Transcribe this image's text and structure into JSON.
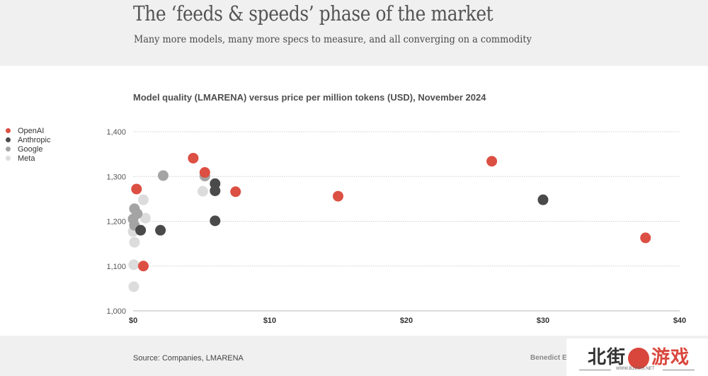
{
  "header": {
    "title": "The ‘feeds & speeds’ phase of the market",
    "subtitle": "Many more models, many more specs to measure, and all converging on a commodity"
  },
  "footer": {
    "source": "Source: Companies, LMARENA",
    "credit": "Benedict E"
  },
  "watermark": {
    "left_text": "北街",
    "right_text": "游戏",
    "url": "WWW.BJJHXS.NET"
  },
  "colors": {
    "OpenAI": "#dc4f43",
    "Anthropic": "#4a4a4a",
    "Google": "#a4a4a4",
    "Meta": "#dcdcdc",
    "grid": "#cfcfcf",
    "axis": "#c8c8c8"
  },
  "chart_data": {
    "type": "scatter",
    "title": "Model quality (LMARENA) versus price per million tokens (USD), November 2024",
    "xlabel": "",
    "ylabel": "",
    "xlim": [
      0,
      40
    ],
    "ylim": [
      1000,
      1400
    ],
    "x_ticks": [
      0,
      10,
      20,
      30,
      40
    ],
    "x_tick_labels": [
      "$0",
      "$10",
      "$20",
      "$30",
      "$40"
    ],
    "y_ticks": [
      1000,
      1100,
      1200,
      1300,
      1400
    ],
    "y_tick_labels": [
      "1,000",
      "1,100",
      "1,200",
      "1,300",
      "1,400"
    ],
    "grid": "horizontal dotted",
    "legend": {
      "placement": "left",
      "entries": [
        "OpenAI",
        "Anthropic",
        "Google",
        "Meta"
      ]
    },
    "series": [
      {
        "name": "Meta",
        "points": [
          [
            0.75,
            1248
          ],
          [
            0.9,
            1207
          ],
          [
            0.0,
            1177
          ],
          [
            0.1,
            1153
          ],
          [
            0.05,
            1103
          ],
          [
            0.05,
            1054
          ],
          [
            5.1,
            1267
          ]
        ]
      },
      {
        "name": "Google",
        "points": [
          [
            0.1,
            1228
          ],
          [
            0.3,
            1217
          ],
          [
            0.0,
            1205
          ],
          [
            0.1,
            1191
          ],
          [
            2.2,
            1302
          ],
          [
            5.25,
            1301
          ]
        ]
      },
      {
        "name": "Anthropic",
        "points": [
          [
            0.55,
            1180
          ],
          [
            2.0,
            1180
          ],
          [
            6.0,
            1284
          ],
          [
            6.0,
            1268
          ],
          [
            6.0,
            1201
          ],
          [
            30.0,
            1248
          ]
        ]
      },
      {
        "name": "OpenAI",
        "points": [
          [
            0.25,
            1272
          ],
          [
            0.75,
            1100
          ],
          [
            4.4,
            1341
          ],
          [
            5.25,
            1309
          ],
          [
            7.5,
            1266
          ],
          [
            15.0,
            1256
          ],
          [
            26.25,
            1334
          ],
          [
            37.5,
            1163
          ]
        ]
      }
    ]
  }
}
